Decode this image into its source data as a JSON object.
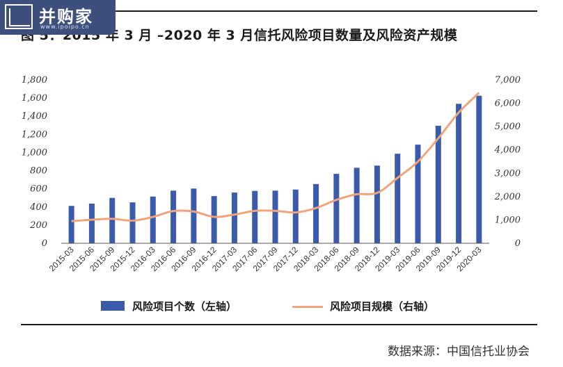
{
  "header": {
    "logo_text": "并购家",
    "logo_url": "www.ipoipo.cn",
    "title": "图 5：2015 年 3 月 –2020 年 3 月信托风险项目数量及风险资产规模"
  },
  "legend": {
    "bar_label": "风险项目个数（左轴）",
    "line_label": "风险项目规模（右轴）"
  },
  "source": "数据来源：中国信托业协会",
  "colors": {
    "bar": "#3a5bab",
    "line": "#f0a47c",
    "text": "#333333"
  },
  "chart_data": {
    "type": "bar",
    "categories": [
      "2015-03",
      "2015-06",
      "2015-09",
      "2015-12",
      "2016-03",
      "2016-06",
      "2016-09",
      "2016-12",
      "2017-03",
      "2017-06",
      "2017-09",
      "2017-12",
      "2018-03",
      "2018-06",
      "2018-09",
      "2018-12",
      "2019-03",
      "2019-06",
      "2019-09",
      "2019-12",
      "2020-03"
    ],
    "series": [
      {
        "name": "风险项目个数（左轴）",
        "type": "bar",
        "axis": "left",
        "values": [
          412,
          437,
          500,
          451,
          515,
          580,
          603,
          520,
          559,
          577,
          580,
          592,
          653,
          765,
          832,
          856,
          987,
          1087,
          1295,
          1537,
          1626
        ]
      },
      {
        "name": "风险项目规模（右轴）",
        "type": "line",
        "axis": "right",
        "values": [
          950,
          1010,
          1050,
          970,
          1130,
          1380,
          1360,
          1130,
          1230,
          1390,
          1390,
          1320,
          1510,
          1860,
          2100,
          2160,
          2800,
          3500,
          4500,
          5600,
          6450
        ]
      }
    ],
    "y_left": {
      "ylim": [
        0,
        1800
      ],
      "ticks": [
        "0",
        "200",
        "400",
        "600",
        "800",
        "1,000",
        "1,200",
        "1,400",
        "1,600",
        "1,800"
      ]
    },
    "y_right": {
      "ylim": [
        0,
        7000
      ],
      "ticks": [
        "0",
        "1,000",
        "2,000",
        "3,000",
        "4,000",
        "5,000",
        "6,000",
        "7,000"
      ]
    },
    "grid": false,
    "legend_position": "bottom"
  }
}
